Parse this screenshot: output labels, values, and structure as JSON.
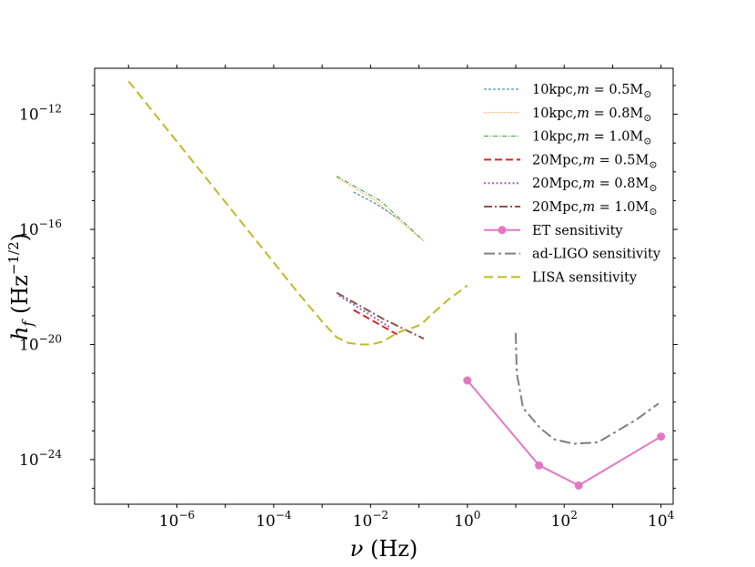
{
  "chart_data": {
    "type": "line",
    "xscale": "log",
    "yscale": "log",
    "xlim_exp": [
      -7.7,
      4.25
    ],
    "ylim_exp": [
      -25.55,
      -10.4
    ],
    "x_ticks": [
      {
        "exp": -6,
        "base": "10",
        "sup": "−6"
      },
      {
        "exp": -4,
        "base": "10",
        "sup": "−4"
      },
      {
        "exp": -2,
        "base": "10",
        "sup": "−2"
      },
      {
        "exp": 0,
        "base": "10",
        "sup": "0"
      },
      {
        "exp": 2,
        "base": "10",
        "sup": "2"
      },
      {
        "exp": 4,
        "base": "10",
        "sup": "4"
      }
    ],
    "y_ticks": [
      {
        "exp": -12,
        "base": "10",
        "sup": "−12"
      },
      {
        "exp": -16,
        "base": "10",
        "sup": "−16"
      },
      {
        "exp": -20,
        "base": "10",
        "sup": "−20"
      },
      {
        "exp": -24,
        "base": "10",
        "sup": "−24"
      }
    ],
    "xlabel": {
      "symbol": "ν",
      "unit": " (Hz)"
    },
    "ylabel": {
      "symbol": "h",
      "sub": "f",
      "unit_open": " (Hz",
      "unit_sup": "−1/2",
      "unit_close": ")"
    },
    "legend_position": "top-right",
    "series": [
      {
        "name": "10kpc, m = 0.5 M⊙",
        "label_main": "10kpc,",
        "label_m": "m",
        "label_eq": " = 0.5M",
        "label_sun": "⊙",
        "color": "#1f77b4",
        "dash": "3,2",
        "width": 1.0,
        "marker": false,
        "points": [
          [
            -2.35,
            -14.7
          ],
          [
            -1.9,
            -15.1
          ],
          [
            -1.45,
            -15.6
          ]
        ]
      },
      {
        "name": "10kpc, m = 0.8 M⊙",
        "label_main": "10kpc,",
        "label_m": "m",
        "label_eq": " = 0.8M",
        "label_sun": "⊙",
        "color": "#ff7f0e",
        "dash": "1,1.5",
        "width": 1.0,
        "marker": false,
        "points": [
          [
            -2.7,
            -14.2
          ],
          [
            -1.9,
            -15.0
          ],
          [
            -0.9,
            -16.4
          ]
        ]
      },
      {
        "name": "10kpc, m = 1.0 M⊙",
        "label_main": "10kpc,",
        "label_m": "m",
        "label_eq": " = 1.0M",
        "label_sun": "⊙",
        "color": "#2ca02c",
        "dash": "5,2,1,2",
        "width": 1.0,
        "marker": false,
        "points": [
          [
            -2.7,
            -14.15
          ],
          [
            -1.8,
            -15.0
          ],
          [
            -0.9,
            -16.4
          ]
        ]
      },
      {
        "name": "20Mpc, m = 0.5 M⊙",
        "label_main": "20Mpc,",
        "label_m": "m",
        "label_eq": " = 0.5M",
        "label_sun": "⊙",
        "color": "#d62728",
        "dash": "8,4",
        "width": 2.0,
        "marker": false,
        "points": [
          [
            -2.35,
            -18.8
          ],
          [
            -1.45,
            -19.65
          ]
        ]
      },
      {
        "name": "20Mpc, m = 0.8 M⊙",
        "label_main": "20Mpc,",
        "label_m": "m",
        "label_eq": " = 0.8M",
        "label_sun": "⊙",
        "color": "#9467bd",
        "dash": "2,2.5",
        "width": 2.0,
        "marker": false,
        "points": [
          [
            -2.65,
            -18.3
          ],
          [
            -1.6,
            -19.4
          ]
        ]
      },
      {
        "name": "20Mpc, m = 1.0 M⊙",
        "label_main": "20Mpc,",
        "label_m": "m",
        "label_eq": " = 1.0M",
        "label_sun": "⊙",
        "color": "#8c564b",
        "dash": "9,3,2,3",
        "width": 2.0,
        "marker": false,
        "points": [
          [
            -2.7,
            -18.2
          ],
          [
            -1.75,
            -19.1
          ],
          [
            -0.9,
            -19.8
          ]
        ]
      },
      {
        "name": "ET sensitivity",
        "label_main": "ET sensitivity",
        "color": "#e377c2",
        "dash": "",
        "width": 2.0,
        "marker": true,
        "points": [
          [
            0,
            -21.25
          ],
          [
            1.48,
            -24.2
          ],
          [
            2.3,
            -24.9
          ],
          [
            4.0,
            -23.2
          ]
        ]
      },
      {
        "name": "ad-LIGO sensitivity",
        "label_main": "ad-LIGO sensitivity",
        "color": "#7f7f7f",
        "dash": "12,4,3,4",
        "width": 2.0,
        "marker": false,
        "points": [
          [
            1.0,
            -19.6
          ],
          [
            1.02,
            -21.0
          ],
          [
            1.15,
            -22.2
          ],
          [
            1.5,
            -22.9
          ],
          [
            1.8,
            -23.3
          ],
          [
            2.2,
            -23.45
          ],
          [
            2.7,
            -23.4
          ],
          [
            3.1,
            -23.0
          ],
          [
            3.5,
            -22.6
          ],
          [
            3.95,
            -22.05
          ]
        ]
      },
      {
        "name": "LISA sensitivity",
        "label_main": "LISA sensitivity",
        "color": "#bcbd22",
        "dash": "10,5",
        "width": 2.0,
        "marker": false,
        "points": [
          [
            -7.0,
            -10.85
          ],
          [
            -6.5,
            -11.9
          ],
          [
            -6.0,
            -12.95
          ],
          [
            -5.5,
            -14.0
          ],
          [
            -5.0,
            -15.05
          ],
          [
            -4.5,
            -16.1
          ],
          [
            -4.0,
            -17.15
          ],
          [
            -3.5,
            -18.2
          ],
          [
            -3.0,
            -19.2
          ],
          [
            -2.7,
            -19.75
          ],
          [
            -2.45,
            -19.95
          ],
          [
            -2.2,
            -20.0
          ],
          [
            -2.0,
            -20.0
          ],
          [
            -1.75,
            -19.9
          ],
          [
            -1.6,
            -19.75
          ],
          [
            -1.45,
            -19.6
          ],
          [
            -1.3,
            -19.5
          ],
          [
            -1.1,
            -19.4
          ],
          [
            -0.95,
            -19.3
          ],
          [
            -0.8,
            -19.05
          ],
          [
            -0.6,
            -18.75
          ],
          [
            -0.4,
            -18.45
          ],
          [
            -0.2,
            -18.2
          ],
          [
            0.0,
            -17.95
          ]
        ]
      }
    ]
  }
}
